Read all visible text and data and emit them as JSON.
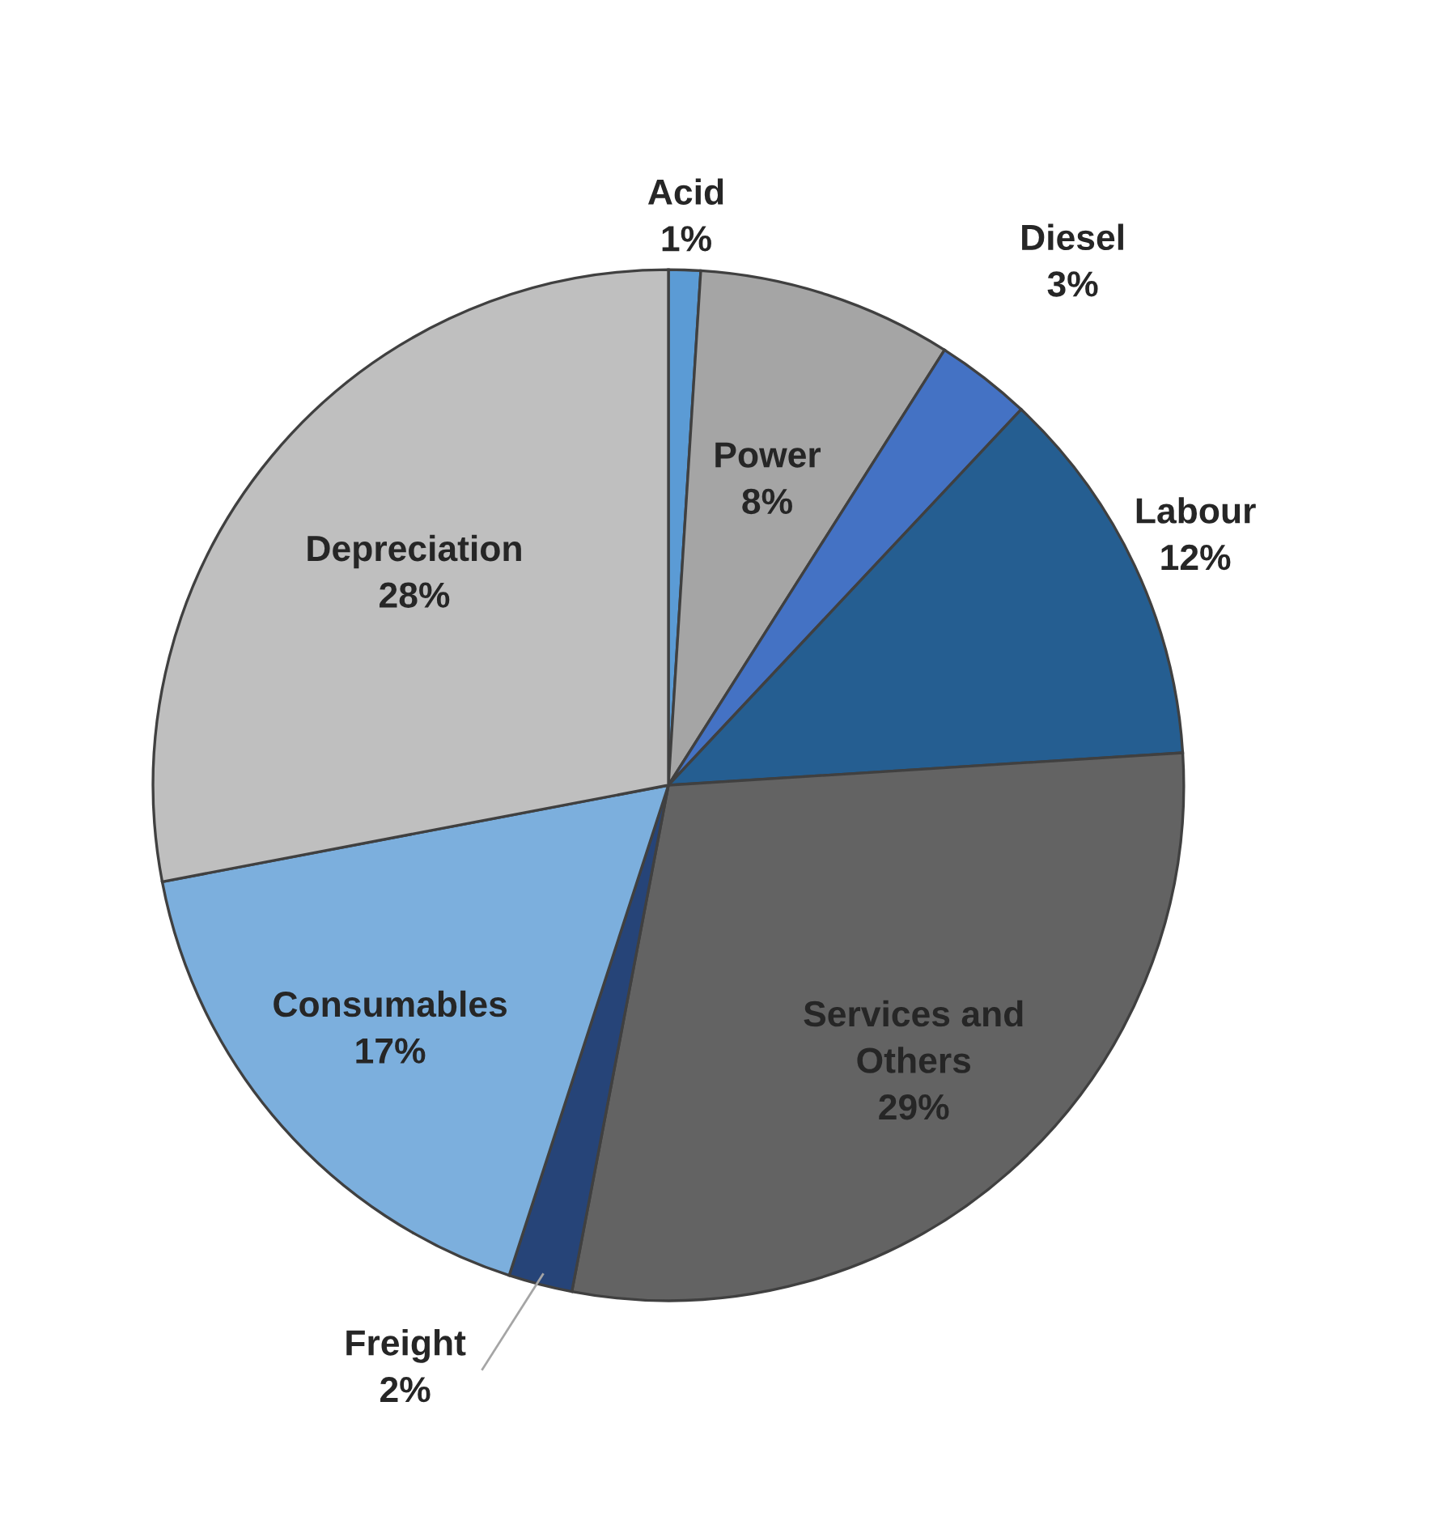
{
  "chart_data": {
    "type": "pie",
    "categories": [
      "Acid",
      "Power",
      "Diesel",
      "Labour",
      "Services and\nOthers",
      "Freight",
      "Consumables",
      "Depreciation"
    ],
    "values": [
      1,
      8,
      3,
      12,
      29,
      2,
      17,
      28
    ],
    "value_labels": [
      "1%",
      "8%",
      "3%",
      "12%",
      "29%",
      "2%",
      "17%",
      "28%"
    ],
    "colors": [
      "#5b9bd5",
      "#a5a5a5",
      "#4472c4",
      "#255e91",
      "#636363",
      "#264478",
      "#7cafdd",
      "#bfbfbf"
    ],
    "legend": false
  }
}
